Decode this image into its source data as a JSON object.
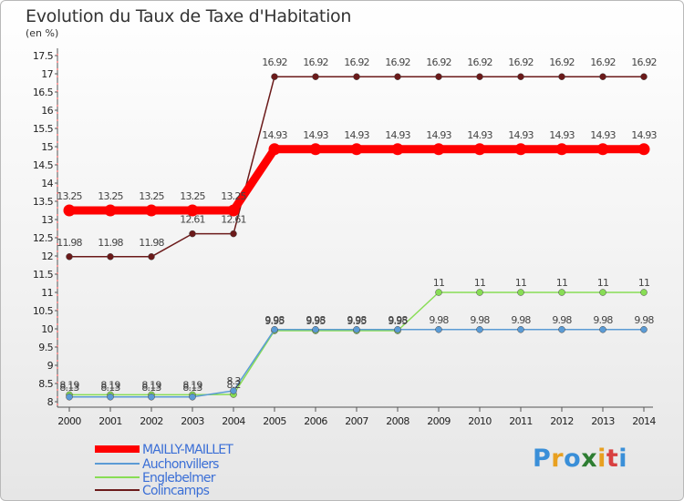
{
  "chart_data": {
    "type": "line",
    "title": "Evolution du Taux de Taxe d'Habitation",
    "unit": "(en %)",
    "x": [
      "2000",
      "2001",
      "2002",
      "2003",
      "2004",
      "2005",
      "2006",
      "2007",
      "2008",
      "2009",
      "2010",
      "2011",
      "2012",
      "2013",
      "2014"
    ],
    "ylim": [
      8,
      17.5
    ],
    "yticks": [
      "8",
      "8.5",
      "9",
      "9.5",
      "10",
      "10.5",
      "11",
      "11.5",
      "12",
      "12.5",
      "13",
      "13.5",
      "14",
      "14.5",
      "15",
      "15.5",
      "16",
      "16.5",
      "17",
      "17.5"
    ],
    "grid": false,
    "legend_position": "bottom-left",
    "series": [
      {
        "name": "MAILLY-MAILLET",
        "color": "#ff0000",
        "values": [
          13.25,
          13.25,
          13.25,
          13.25,
          13.25,
          14.93,
          14.93,
          14.93,
          14.93,
          14.93,
          14.93,
          14.93,
          14.93,
          14.93,
          14.93
        ],
        "labels": [
          "13.25",
          "13.25",
          "13.25",
          "13.25",
          "13.25",
          "14.93",
          "14.93",
          "14.93",
          "14.93",
          "14.93",
          "14.93",
          "14.93",
          "14.93",
          "14.93",
          "14.93"
        ]
      },
      {
        "name": "Auchonvillers",
        "color": "#5b9bd5",
        "values": [
          8.13,
          8.13,
          8.13,
          8.13,
          8.3,
          9.98,
          9.98,
          9.98,
          9.98,
          9.98,
          9.98,
          9.98,
          9.98,
          9.98,
          9.98
        ],
        "labels": [
          "8.13",
          "8.13",
          "8.13",
          "8.13",
          "8.3",
          "9.98",
          "9.98",
          "9.98",
          "9.98",
          "9.98",
          "9.98",
          "9.98",
          "9.98",
          "9.98",
          "9.98"
        ]
      },
      {
        "name": "Englebelmer",
        "color": "#88dd55",
        "values": [
          8.19,
          8.19,
          8.19,
          8.19,
          8.2,
          9.95,
          9.95,
          9.95,
          9.95,
          11,
          11,
          11,
          11,
          11,
          11
        ],
        "labels": [
          "8.19",
          "8.19",
          "8.19",
          "8.19",
          "8.2",
          "9.95",
          "9.95",
          "9.95",
          "9.95",
          "11",
          "11",
          "11",
          "11",
          "11",
          "11"
        ]
      },
      {
        "name": "Colincamps",
        "color": "#6b1a1a",
        "values": [
          11.98,
          11.98,
          11.98,
          12.61,
          12.61,
          16.92,
          16.92,
          16.92,
          16.92,
          16.92,
          16.92,
          16.92,
          16.92,
          16.92,
          16.92
        ],
        "labels": [
          "11.98",
          "11.98",
          "11.98",
          "12.61",
          "12.61",
          "16.92",
          "16.92",
          "16.92",
          "16.92",
          "16.92",
          "16.92",
          "16.92",
          "16.92",
          "16.92",
          "16.92"
        ]
      }
    ]
  },
  "branding": {
    "logo": "Proxiti"
  }
}
